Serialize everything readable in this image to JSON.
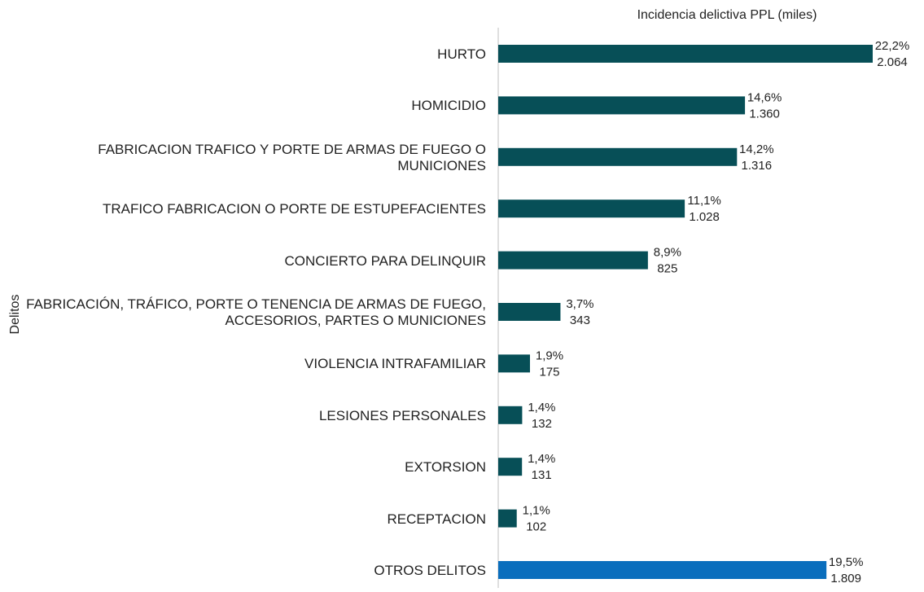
{
  "chart_data": {
    "type": "bar",
    "orientation": "horizontal",
    "title": "Incidencia delictiva PPL (miles)",
    "y_label": "Delitos",
    "categories": [
      "HURTO",
      "HOMICIDIO",
      "FABRICACION TRAFICO Y PORTE DE ARMAS DE FUEGO O MUNICIONES",
      "TRAFICO FABRICACION O PORTE DE ESTUPEFACIENTES",
      "CONCIERTO PARA DELINQUIR",
      "FABRICACIÓN, TRÁFICO, PORTE O TENENCIA DE ARMAS DE FUEGO, ACCESORIOS, PARTES O MUNICIONES",
      "VIOLENCIA INTRAFAMILIAR",
      "LESIONES PERSONALES",
      "EXTORSION",
      "RECEPTACION",
      "OTROS DELITOS"
    ],
    "values": [
      2064,
      1360,
      1316,
      1028,
      825,
      343,
      175,
      132,
      131,
      102,
      1809
    ],
    "value_labels": [
      "2.064",
      "1.360",
      "1.316",
      "1.028",
      "825",
      "343",
      "175",
      "132",
      "131",
      "102",
      "1.809"
    ],
    "percentages": [
      22.2,
      14.6,
      14.2,
      11.1,
      8.9,
      3.7,
      1.9,
      1.4,
      1.4,
      1.1,
      19.5
    ],
    "percentage_labels": [
      "22,2%",
      "14,6%",
      "14,2%",
      "11,1%",
      "8,9%",
      "3,7%",
      "1,9%",
      "1,4%",
      "1,4%",
      "1,1%",
      "19,5%"
    ],
    "colors": [
      "#074f57",
      "#074f57",
      "#074f57",
      "#074f57",
      "#074f57",
      "#074f57",
      "#074f57",
      "#074f57",
      "#074f57",
      "#074f57",
      "#0a6ebd"
    ]
  }
}
